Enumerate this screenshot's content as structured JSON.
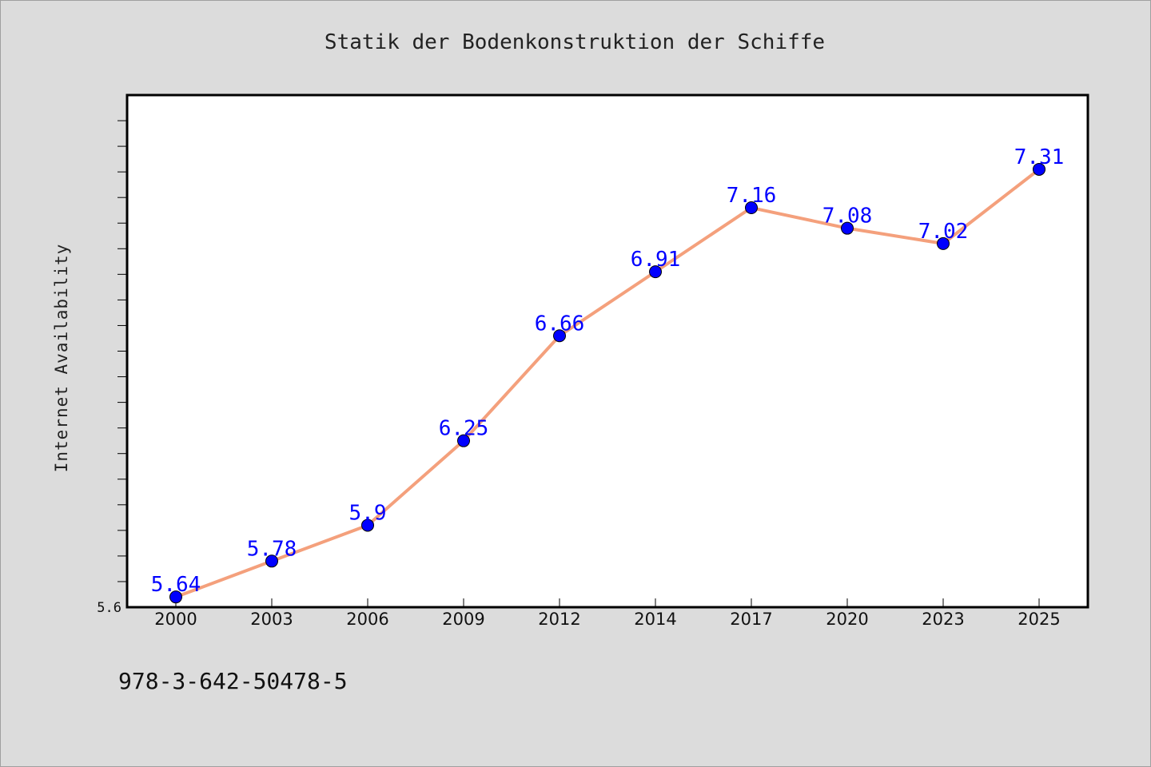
{
  "chart_data": {
    "type": "line",
    "title": "Statik der Bodenkonstruktion der Schiffe",
    "xlabel": "",
    "ylabel": "Internet Availability",
    "categories": [
      "2000",
      "2003",
      "2006",
      "2009",
      "2012",
      "2014",
      "2017",
      "2020",
      "2023",
      "2025"
    ],
    "series": [
      {
        "values": [
          5.64,
          5.78,
          5.92,
          6.25,
          6.66,
          6.91,
          7.16,
          7.08,
          7.02,
          7.31
        ]
      }
    ],
    "data_labels": [
      "5.64",
      "5.78",
      "5.9",
      "6.25",
      "6.66",
      "6.91",
      "7.16",
      "7.08",
      "7.02",
      "7.31"
    ],
    "yticks": [
      "5.6"
    ],
    "ylim": [
      5.6,
      7.6
    ],
    "grid": false,
    "legend": "none",
    "colors": {
      "line": "#f4a07c",
      "marker": "#0000ff",
      "label": "#0000ff",
      "plot_bg": "#ffffff",
      "figure_bg": "#dcdcdc"
    }
  },
  "footer": {
    "isbn": "978-3-642-50478-5"
  }
}
